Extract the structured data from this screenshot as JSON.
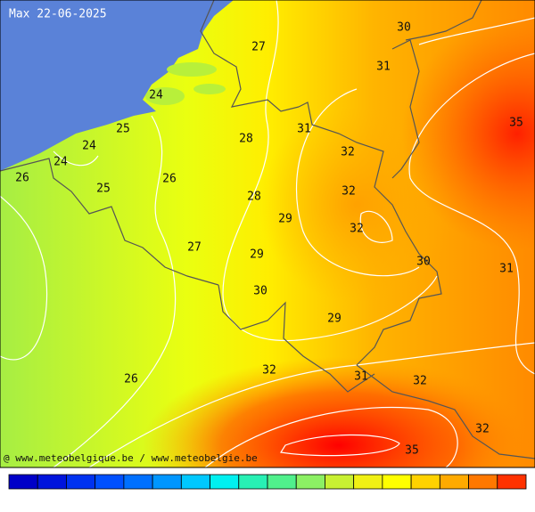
{
  "title": "Max 22-06-2025",
  "credit": "@ www.meteobelgique.be / www.meteobelgie.be",
  "contour_labels": [
    30,
    27,
    31,
    24,
    35,
    25,
    31,
    28,
    24,
    32,
    24,
    26,
    26,
    25,
    32,
    28,
    29,
    32,
    27,
    29,
    30,
    31,
    30,
    29,
    32,
    31,
    26,
    32,
    32,
    35
  ],
  "legend": {
    "colors": [
      "#0000c8",
      "#0014dc",
      "#0032f0",
      "#0050ff",
      "#0070ff",
      "#0096ff",
      "#00c8ff",
      "#00f0f0",
      "#28f0b4",
      "#50f08c",
      "#8cf064",
      "#c8f032",
      "#f0f014",
      "#ffff00",
      "#ffd200",
      "#ffaa00",
      "#ff7800",
      "#ff3200"
    ]
  }
}
